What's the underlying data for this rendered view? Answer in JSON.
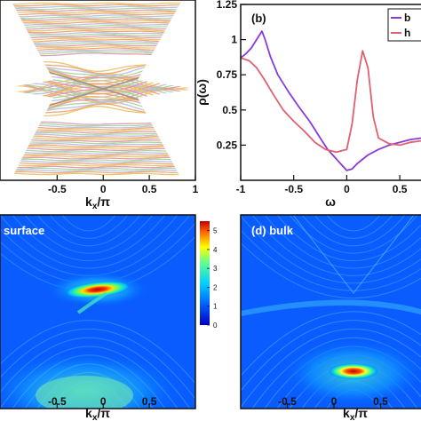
{
  "panel_a": {
    "chart_data": {
      "type": "line",
      "description_series": "surface band spectrum",
      "xlabel_main": "k",
      "xlabel_sub": "x",
      "xlabel_tail": "/π",
      "xlim": [
        -1,
        1
      ],
      "xticks": [
        "-0.5",
        "0",
        "0.5",
        "1"
      ],
      "xtick_values": [
        -0.5,
        0,
        0.5,
        1
      ],
      "band_colors": [
        "#e8c060",
        "#e090b0",
        "#a0d890",
        "#b8b8e8",
        "#f0a060"
      ]
    }
  },
  "panel_b": {
    "label": "(b)",
    "chart_data": {
      "type": "line",
      "xlabel": "ω",
      "ylabel": "ρ(ω)",
      "xlim": [
        -1,
        0.7
      ],
      "ylim": [
        0,
        1.25
      ],
      "xticks": [
        "-1",
        "-0.5",
        "0",
        "0.5"
      ],
      "xtick_values": [
        -1,
        -0.5,
        0,
        0.5
      ],
      "yticks": [
        "0.25",
        "0.5",
        "0.75",
        "1",
        "1.25"
      ],
      "ytick_values": [
        0.25,
        0.5,
        0.75,
        1,
        1.25
      ],
      "legend": [
        "b",
        "h"
      ],
      "series": [
        {
          "name": "b",
          "color": "#8a3ad8",
          "x": [
            -1,
            -0.95,
            -0.9,
            -0.85,
            -0.8,
            -0.77,
            -0.72,
            -0.65,
            -0.55,
            -0.45,
            -0.35,
            -0.25,
            -0.18,
            -0.12,
            -0.06,
            0,
            0.05,
            0.1,
            0.2,
            0.3,
            0.4,
            0.5,
            0.6,
            0.7
          ],
          "y": [
            0.87,
            0.9,
            0.94,
            1.0,
            1.06,
            1.0,
            0.88,
            0.75,
            0.63,
            0.52,
            0.42,
            0.3,
            0.22,
            0.17,
            0.12,
            0.07,
            0.08,
            0.12,
            0.18,
            0.22,
            0.25,
            0.27,
            0.29,
            0.3
          ]
        },
        {
          "name": "h",
          "color": "#e06070",
          "x": [
            -1,
            -0.92,
            -0.85,
            -0.78,
            -0.7,
            -0.6,
            -0.5,
            -0.4,
            -0.3,
            -0.2,
            -0.1,
            0,
            0.05,
            0.1,
            0.15,
            0.2,
            0.25,
            0.3,
            0.4,
            0.5,
            0.6,
            0.7
          ],
          "y": [
            0.87,
            0.85,
            0.8,
            0.72,
            0.62,
            0.5,
            0.42,
            0.35,
            0.27,
            0.22,
            0.2,
            0.22,
            0.4,
            0.72,
            0.92,
            0.8,
            0.45,
            0.3,
            0.26,
            0.25,
            0.27,
            0.28
          ]
        }
      ]
    }
  },
  "panel_c": {
    "label": "surface",
    "chart_data": {
      "type": "heatmap",
      "xlabel_main": "k",
      "xlabel_sub": "x",
      "xlabel_tail": "/π",
      "xticks": [
        "-0.5",
        "0",
        "0.5"
      ],
      "xtick_values": [
        -0.5,
        0,
        0.5
      ],
      "colorbar_ticks": [
        "0",
        "1",
        "2",
        "3",
        "4",
        "5"
      ],
      "colorbar_values": [
        0,
        1,
        2,
        3,
        4,
        5
      ],
      "colorbar_range": [
        0,
        5.5
      ]
    }
  },
  "panel_d": {
    "label": "(d) bulk",
    "chart_data": {
      "type": "heatmap",
      "xlabel_main": "k",
      "xlabel_sub": "x",
      "xlabel_tail": "/π",
      "xticks": [
        "-0.5",
        "0",
        "0.5"
      ],
      "xtick_values": [
        -0.5,
        0,
        0.5
      ]
    }
  }
}
